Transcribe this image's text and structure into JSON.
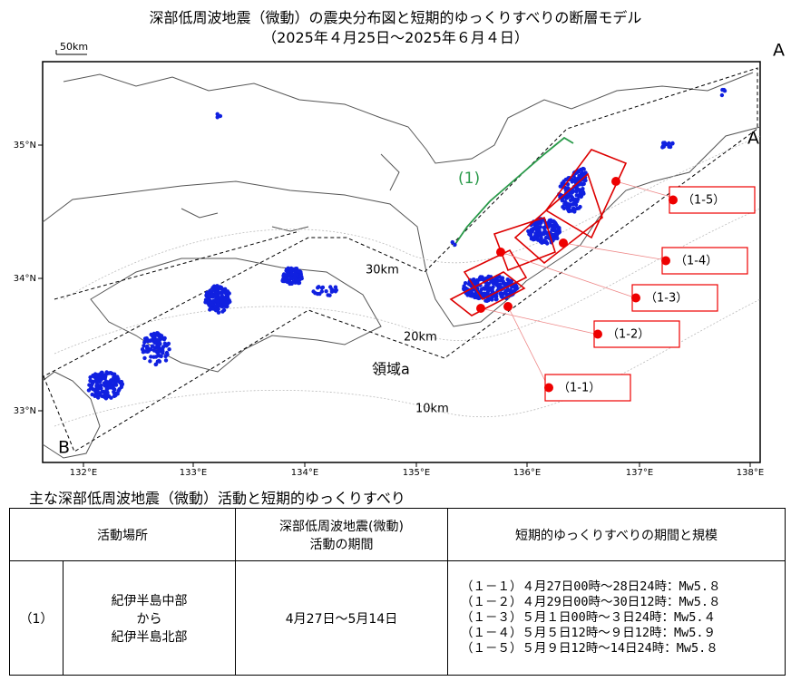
{
  "map": {
    "title": "深部低周波地震（微動）の震央分布図と短期的ゆっくりすべりの断層モデル",
    "subtitle": "（2025年４月25日～2025年６月４日）",
    "scale_label": "50km",
    "profile_end_a_outer": "A",
    "profile_end_a": "A",
    "profile_end_b": "B",
    "group_label": "(1)",
    "depth_labels": [
      "30km",
      "20km",
      "10km"
    ],
    "region_label": "領域a",
    "lat_labels": [
      "35°N",
      "34°N",
      "33°N"
    ],
    "lon_labels": [
      "132°E",
      "133°E",
      "134°E",
      "135°E",
      "136°E",
      "137°E",
      "138°E"
    ],
    "fault_labels": [
      "（1-1）",
      "（1-2）",
      "（1-3）",
      "（1-4）",
      "（1-5）"
    ]
  },
  "table": {
    "title": "主な深部低周波地震（微動）活動と短期的ゆっくりすべり",
    "header": [
      "活動場所",
      [
        "深部低周波地震(微動)",
        "活動の期間"
      ],
      "短期的ゆっくりすべりの期間と規模"
    ],
    "rows": [
      [
        "（1）",
        [
          "紀伊半島中部",
          "から",
          "紀伊半島北部"
        ],
        "4月27日～5月14日",
        [
          "（１－１）４月27日00時～28日24時：Mw5.８",
          "（１－２）４月29日00時～30日12時：Mw5.８",
          "（１－３）５月１日00時～３日24時：Mw5.４",
          "（１－４）５月５日12時～９日12時：Mw5.９",
          "（１－５）５月９日12時～14日24時：Mw5.８"
        ]
      ]
    ]
  }
}
